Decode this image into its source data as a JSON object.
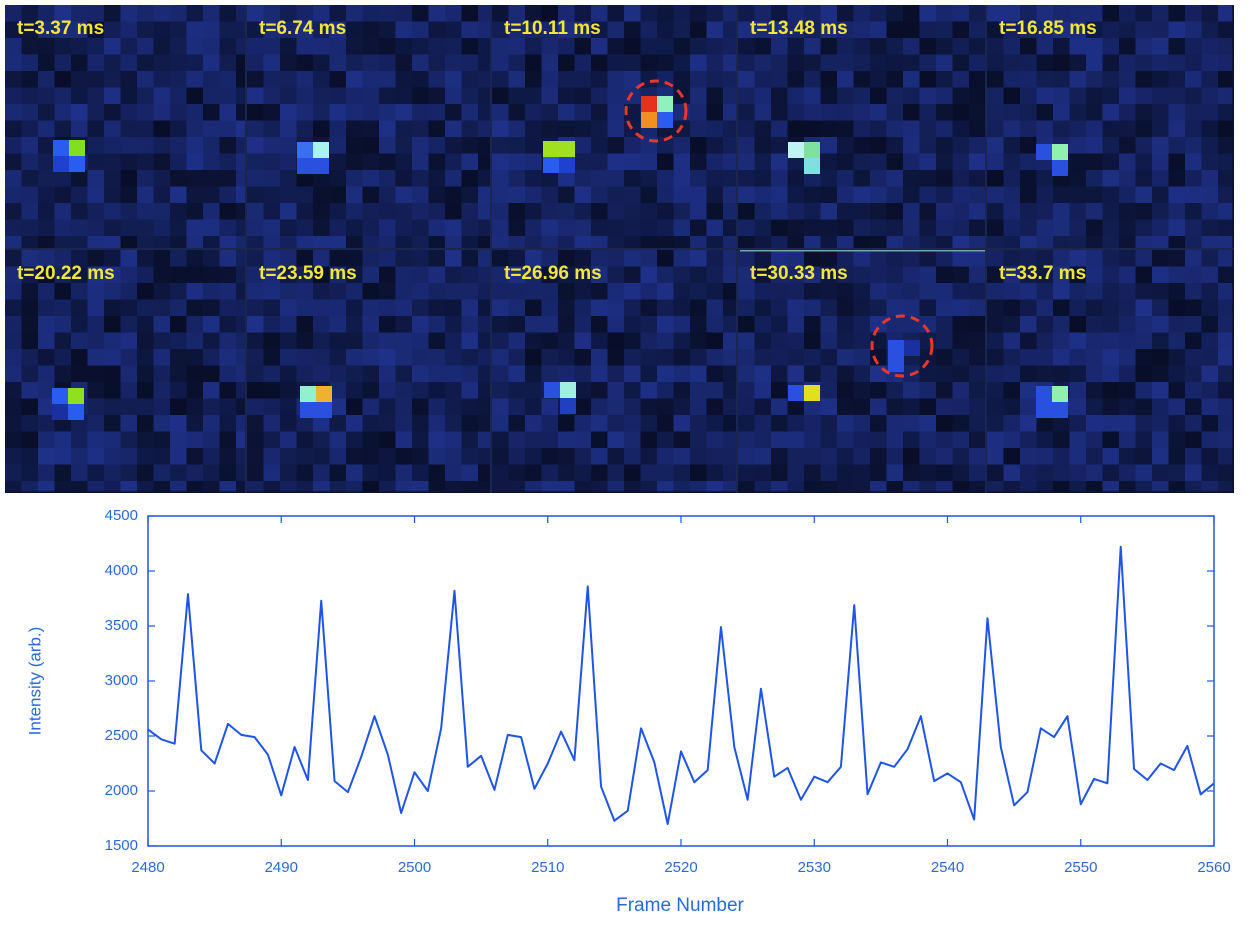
{
  "panels": [
    "t=3.37 ms",
    "t=6.74 ms",
    "t=10.11 ms",
    "t=13.48 ms",
    "t=16.85 ms",
    "t=20.22 ms",
    "t=23.59 ms",
    "t=26.96 ms",
    "t=30.33 ms",
    "t=33.7 ms"
  ],
  "chart_data": {
    "type": "line",
    "x_label": "Frame Number",
    "y_label": "Intensity (arb.)",
    "x": [
      2480,
      2481,
      2482,
      2483,
      2484,
      2485,
      2486,
      2487,
      2488,
      2489,
      2490,
      2491,
      2492,
      2493,
      2494,
      2495,
      2496,
      2497,
      2498,
      2499,
      2500,
      2501,
      2502,
      2503,
      2504,
      2505,
      2506,
      2507,
      2508,
      2509,
      2510,
      2511,
      2512,
      2513,
      2514,
      2515,
      2516,
      2517,
      2518,
      2519,
      2520,
      2521,
      2522,
      2523,
      2524,
      2525,
      2526,
      2527,
      2528,
      2529,
      2530,
      2531,
      2532,
      2533,
      2534,
      2535,
      2536,
      2537,
      2538,
      2539,
      2540,
      2541,
      2542,
      2543,
      2544,
      2545,
      2546,
      2547,
      2548,
      2549,
      2550,
      2551,
      2552,
      2553,
      2554,
      2555,
      2556,
      2557,
      2558,
      2559,
      2560
    ],
    "values": [
      2560,
      2470,
      2430,
      3790,
      2370,
      2250,
      2610,
      2510,
      2490,
      2330,
      1960,
      2400,
      2100,
      3730,
      2090,
      1990,
      2310,
      2680,
      2330,
      1800,
      2170,
      2000,
      2570,
      3820,
      2220,
      2320,
      2010,
      2510,
      2490,
      2020,
      2250,
      2540,
      2280,
      3860,
      2040,
      1730,
      1820,
      2570,
      2260,
      1700,
      2360,
      2080,
      2190,
      3490,
      2400,
      1920,
      2930,
      2130,
      2210,
      1920,
      2130,
      2080,
      2220,
      3690,
      1970,
      2260,
      2220,
      2380,
      2680,
      2090,
      2160,
      2080,
      1740,
      3570,
      2400,
      1870,
      1990,
      2570,
      2490,
      2680,
      1880,
      2110,
      2070,
      4220,
      2200,
      2100,
      2250,
      2190,
      2410,
      1970,
      2070
    ],
    "color": "#1f55e6",
    "xlim": [
      2480,
      2560
    ],
    "xticks": [
      2480,
      2490,
      2500,
      2510,
      2520,
      2530,
      2540,
      2550,
      2560
    ],
    "ylim": [
      1500,
      4500
    ],
    "yticks": [
      1500,
      2000,
      2500,
      3000,
      3500,
      4000,
      4500
    ],
    "grid": false
  }
}
